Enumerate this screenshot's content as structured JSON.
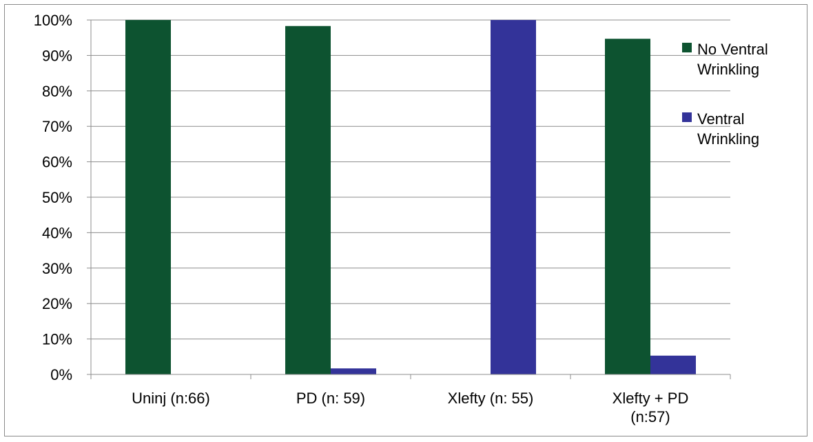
{
  "chart_data": {
    "type": "bar",
    "title": "",
    "xlabel": "",
    "ylabel": "",
    "categories": [
      [
        "Uninj (n:66)"
      ],
      [
        "PD (n: 59)"
      ],
      [
        "Xlefty (n: 55)"
      ],
      [
        "Xlefty + PD",
        "(n:57)"
      ]
    ],
    "series": [
      {
        "name": "No Ventral Wrinkling",
        "legend_lines": [
          "No Ventral",
          "Wrinkling"
        ],
        "color": "#0d5330",
        "values": [
          100,
          98.3,
          0,
          94.7
        ]
      },
      {
        "name": "Ventral Wrinkling",
        "legend_lines": [
          "Ventral",
          "Wrinkling"
        ],
        "color": "#333399",
        "values": [
          0,
          1.7,
          100,
          5.3
        ]
      }
    ],
    "ylim": [
      0,
      100
    ],
    "yticks": [
      "0%",
      "10%",
      "20%",
      "30%",
      "40%",
      "50%",
      "60%",
      "70%",
      "80%",
      "90%",
      "100%"
    ],
    "grid": true,
    "legend_position": "right",
    "colors": {
      "gridline": "#8c8c8c",
      "axis": "#8c8c8c",
      "frame": "#8a8a8a"
    }
  }
}
